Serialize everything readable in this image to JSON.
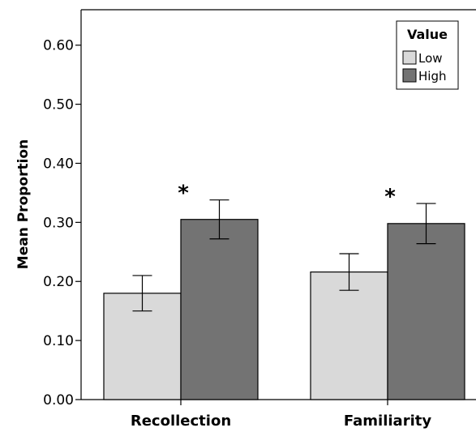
{
  "chart_data": {
    "type": "bar",
    "categories": [
      "Recollection",
      "Familiarity"
    ],
    "series": [
      {
        "name": "Low",
        "values": [
          0.18,
          0.216
        ],
        "error_low": [
          0.15,
          0.185
        ],
        "error_high": [
          0.21,
          0.247
        ],
        "color": "#d9d9d9"
      },
      {
        "name": "High",
        "values": [
          0.305,
          0.298
        ],
        "error_low": [
          0.272,
          0.264
        ],
        "error_high": [
          0.338,
          0.332
        ],
        "color": "#737373"
      }
    ],
    "significance_markers": [
      "*",
      "*"
    ],
    "ylabel": "Mean Proportion",
    "xlabel": "",
    "ylim": [
      0,
      0.66
    ],
    "yticks": [
      "0.00",
      "0.10",
      "0.20",
      "0.30",
      "0.40",
      "0.50",
      "0.60"
    ],
    "ytick_values": [
      0,
      0.1,
      0.2,
      0.3,
      0.4,
      0.5,
      0.6
    ],
    "legend": {
      "title": "Value",
      "position": "top-right"
    },
    "grid": false
  }
}
